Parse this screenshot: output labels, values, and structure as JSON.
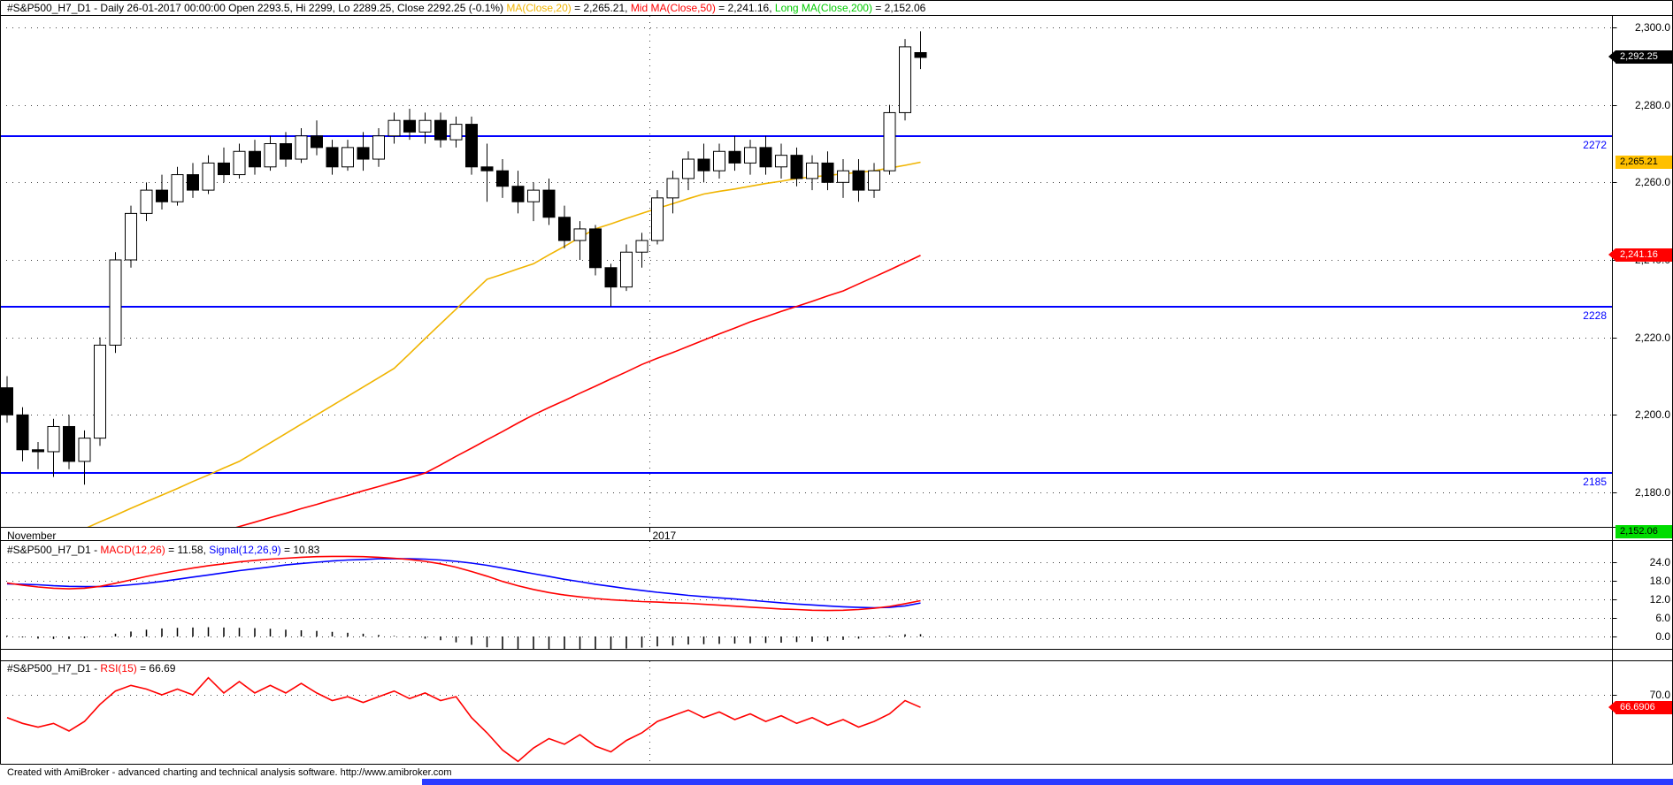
{
  "window": {
    "footer": "Created with AmiBroker - advanced charting and technical analysis software. http://www.amibroker.com"
  },
  "colors": {
    "ma20": "#f0b400",
    "ma50": "#ff0000",
    "ma200": "#00cc00",
    "macd": "#ff0000",
    "signal": "#0000ff",
    "rsi": "#ff0000",
    "support_line": "#0000ff",
    "grid_dot": "#404040",
    "histogram": "#000000",
    "scrollbar": "#2b3bff"
  },
  "chart_data": [
    {
      "type": "candlestick",
      "title_segments": [
        {
          "text": "#S&P500_H7_D1 - Daily 26-01-2017 00:00:00 Open 2293.5, Hi 2299, Lo 2289.25, Close 2292.25 (-0.1%) ",
          "color": "#000000"
        },
        {
          "text": "MA(Close,20)",
          "color": "#f0b400"
        },
        {
          "text": " = 2,265.21, ",
          "color": "#000000"
        },
        {
          "text": "Mid MA(Close,50)",
          "color": "#ff0000"
        },
        {
          "text": " = 2,241.16, ",
          "color": "#000000"
        },
        {
          "text": "Long MA(Close,200)",
          "color": "#00cc00"
        },
        {
          "text": " = 2,152.06",
          "color": "#000000"
        }
      ],
      "x_axis": {
        "month_label": "November",
        "year_label": "2017",
        "year_line_bar": 41.5
      },
      "y_ticks": [
        {
          "label": "2,300.0",
          "value": 2300
        },
        {
          "label": "2,280.0",
          "value": 2280
        },
        {
          "label": "2,260.0",
          "value": 2260
        },
        {
          "label": "2,240.0",
          "value": 2240
        },
        {
          "label": "2,220.0",
          "value": 2220
        },
        {
          "label": "2,200.0",
          "value": 2200
        },
        {
          "label": "2,180.0",
          "value": 2180
        }
      ],
      "y_range": [
        2171,
        2303
      ],
      "support_lines": [
        {
          "label": "2272",
          "value": 2272
        },
        {
          "label": "2228",
          "value": 2228
        },
        {
          "label": "2185",
          "value": 2185
        }
      ],
      "price_boxes": [
        {
          "text": "2,292.25",
          "value": 2292.25,
          "bg": "#000000",
          "fg": "#ffffff",
          "arrow": true,
          "clamp": false
        },
        {
          "text": "2,265.21",
          "value": 2265.21,
          "bg": "#ffc000",
          "fg": "#000000",
          "arrow": false,
          "clamp": false
        },
        {
          "text": "2,241.16",
          "value": 2241.16,
          "bg": "#ff0000",
          "fg": "#ffffff",
          "arrow": true,
          "clamp": false
        },
        {
          "text": "2,152.06",
          "value": 2152.06,
          "bg": "#00dd00",
          "fg": "#000000",
          "arrow": false,
          "clamp": true
        }
      ],
      "ohlc": [
        [
          2207,
          2210,
          2198,
          2200
        ],
        [
          2200,
          2202,
          2188,
          2191
        ],
        [
          2191,
          2193,
          2186,
          2190.5
        ],
        [
          2190.5,
          2199,
          2184,
          2197
        ],
        [
          2197,
          2200,
          2186,
          2188
        ],
        [
          2188,
          2196,
          2182,
          2194
        ],
        [
          2194,
          2220,
          2192,
          2218
        ],
        [
          2218,
          2242,
          2216,
          2240
        ],
        [
          2240,
          2254,
          2238,
          2252
        ],
        [
          2252,
          2260,
          2250,
          2258
        ],
        [
          2258,
          2262,
          2253,
          2255
        ],
        [
          2255,
          2264,
          2254,
          2262
        ],
        [
          2262,
          2265,
          2256,
          2258
        ],
        [
          2258,
          2267,
          2257,
          2265
        ],
        [
          2265,
          2269,
          2260,
          2262
        ],
        [
          2262,
          2270,
          2261,
          2268
        ],
        [
          2268,
          2271,
          2262,
          2264
        ],
        [
          2264,
          2272,
          2263,
          2270
        ],
        [
          2270,
          2273,
          2264,
          2266
        ],
        [
          2266,
          2274,
          2265,
          2272
        ],
        [
          2272,
          2276,
          2267,
          2269
        ],
        [
          2269,
          2271,
          2262,
          2264
        ],
        [
          2264,
          2271,
          2263,
          2269
        ],
        [
          2269,
          2273,
          2263,
          2266
        ],
        [
          2266,
          2274,
          2264,
          2272
        ],
        [
          2272,
          2278,
          2270,
          2276
        ],
        [
          2276,
          2279,
          2271,
          2273
        ],
        [
          2273,
          2278,
          2270,
          2276
        ],
        [
          2276,
          2278,
          2269,
          2271
        ],
        [
          2271,
          2277,
          2269,
          2275
        ],
        [
          2275,
          2277,
          2262,
          2264
        ],
        [
          2264,
          2270,
          2255,
          2263
        ],
        [
          2263,
          2266,
          2256,
          2259
        ],
        [
          2259,
          2263,
          2252,
          2255
        ],
        [
          2255,
          2260,
          2250,
          2258
        ],
        [
          2258,
          2261,
          2249,
          2251
        ],
        [
          2251,
          2254,
          2243,
          2245
        ],
        [
          2245,
          2250,
          2240,
          2248
        ],
        [
          2248,
          2249,
          2236,
          2238
        ],
        [
          2238,
          2239,
          2228,
          2233
        ],
        [
          2233,
          2244,
          2232,
          2242
        ],
        [
          2242,
          2247,
          2238,
          2245
        ],
        [
          2245,
          2258,
          2244,
          2256
        ],
        [
          2256,
          2263,
          2252,
          2261
        ],
        [
          2261,
          2268,
          2258,
          2266
        ],
        [
          2266,
          2270,
          2260,
          2263
        ],
        [
          2263,
          2270,
          2261,
          2268
        ],
        [
          2268,
          2272,
          2263,
          2265
        ],
        [
          2265,
          2271,
          2262,
          2269
        ],
        [
          2269,
          2272,
          2262,
          2264
        ],
        [
          2264,
          2270,
          2261,
          2267
        ],
        [
          2267,
          2269,
          2259,
          2261
        ],
        [
          2261,
          2267,
          2258,
          2265
        ],
        [
          2265,
          2268,
          2258,
          2260
        ],
        [
          2260,
          2266,
          2256,
          2263
        ],
        [
          2263,
          2266,
          2255,
          2258
        ],
        [
          2258,
          2265,
          2256,
          2263
        ],
        [
          2263,
          2280,
          2262,
          2278
        ],
        [
          2278,
          2297,
          2276,
          2295
        ],
        [
          2293.5,
          2299,
          2289.25,
          2292.25
        ]
      ],
      "ma20": [
        2162,
        2163.7,
        2165.5,
        2167.2,
        2169,
        2170.6,
        2172.4,
        2174.1,
        2175.9,
        2177.6,
        2179.3,
        2181,
        2182.8,
        2184.5,
        2186.3,
        2188,
        2190.4,
        2192.8,
        2195.2,
        2197.6,
        2200,
        2202.4,
        2204.8,
        2207.2,
        2209.6,
        2212,
        2215.8,
        2219.7,
        2223.5,
        2227.3,
        2231.2,
        2235,
        2236.3,
        2237.7,
        2239,
        2241.3,
        2243.5,
        2245.8,
        2248,
        2249.3,
        2250.7,
        2252,
        2253.3,
        2254.5,
        2255.8,
        2257,
        2257.7,
        2258.3,
        2259,
        2259.7,
        2260.3,
        2261,
        2261.4,
        2261.8,
        2262.2,
        2262.6,
        2263,
        2263.7,
        2264.4,
        2265.2
      ],
      "ma50": [
        null,
        null,
        null,
        null,
        null,
        null,
        null,
        null,
        null,
        null,
        null,
        null,
        null,
        null,
        2170,
        2171.2,
        2172.3,
        2173.5,
        2174.6,
        2175.8,
        2176.9,
        2178.1,
        2179.2,
        2180.4,
        2181.5,
        2182.7,
        2183.8,
        2185,
        2187.1,
        2189.3,
        2191.4,
        2193.6,
        2195.7,
        2197.9,
        2200,
        2201.9,
        2203.7,
        2205.6,
        2207.4,
        2209.3,
        2211.1,
        2213,
        2214.6,
        2216.1,
        2217.7,
        2219.3,
        2220.9,
        2222.4,
        2224,
        2225.3,
        2226.7,
        2228,
        2229.3,
        2230.7,
        2232,
        2233.8,
        2235.6,
        2237.4,
        2239.3,
        2241.16
      ]
    },
    {
      "type": "line+histogram",
      "name": "MACD",
      "title_segments": [
        {
          "text": "#S&P500_H7_D1 - ",
          "color": "#000000"
        },
        {
          "text": "MACD(12,26)",
          "color": "#ff0000"
        },
        {
          "text": " = 11.58, ",
          "color": "#000000"
        },
        {
          "text": "Signal(12,26,9)",
          "color": "#0000ff"
        },
        {
          "text": " = 10.83",
          "color": "#000000"
        }
      ],
      "y_ticks": [
        {
          "label": "24.0",
          "value": 24
        },
        {
          "label": "18.0",
          "value": 18
        },
        {
          "label": "12.0",
          "value": 12
        },
        {
          "label": "6.0",
          "value": 6
        },
        {
          "label": "0.0",
          "value": 0
        }
      ],
      "macd": [
        17.3,
        16.6,
        16.0,
        15.6,
        15.4,
        15.6,
        16.2,
        17.2,
        18.3,
        19.4,
        20.4,
        21.3,
        22.1,
        22.9,
        23.5,
        24.1,
        24.6,
        25.0,
        25.3,
        25.6,
        25.8,
        25.9,
        25.9,
        25.8,
        25.6,
        25.3,
        24.9,
        24.3,
        23.5,
        22.4,
        21.0,
        19.5,
        17.8,
        16.4,
        15.2,
        14.2,
        13.4,
        12.8,
        12.3,
        11.9,
        11.6,
        11.3,
        11.1,
        10.9,
        10.7,
        10.4,
        10.1,
        9.8,
        9.5,
        9.2,
        8.9,
        8.7,
        8.5,
        8.4,
        8.5,
        8.7,
        9.1,
        9.7,
        10.6,
        11.58
      ],
      "signal": [
        17.0,
        16.9,
        16.7,
        16.4,
        16.2,
        16.1,
        16.1,
        16.3,
        16.7,
        17.2,
        17.8,
        18.5,
        19.2,
        19.9,
        20.6,
        21.3,
        21.9,
        22.5,
        23.1,
        23.6,
        24.0,
        24.4,
        24.7,
        24.9,
        25.1,
        25.1,
        25.1,
        25.0,
        24.7,
        24.3,
        23.7,
        23.0,
        22.1,
        21.2,
        20.3,
        19.4,
        18.5,
        17.7,
        16.9,
        16.2,
        15.5,
        14.9,
        14.3,
        13.8,
        13.3,
        12.9,
        12.5,
        12.1,
        11.7,
        11.3,
        10.9,
        10.5,
        10.2,
        9.9,
        9.6,
        9.4,
        9.3,
        9.4,
        9.9,
        10.83
      ]
    },
    {
      "type": "line",
      "name": "RSI",
      "title_segments": [
        {
          "text": "#S&P500_H7_D1 - ",
          "color": "#000000"
        },
        {
          "text": "RSI(15)",
          "color": "#ff0000"
        },
        {
          "text": " = 66.69",
          "color": "#000000"
        }
      ],
      "y_ticks": [
        {
          "label": "70.0",
          "value": 70
        }
      ],
      "value_box": {
        "text": "66.6906",
        "value": 66.6906,
        "bg": "#ff0000",
        "fg": "#ffffff",
        "arrow": true
      },
      "rsi": [
        64,
        62.5,
        61.5,
        62.5,
        60.5,
        63,
        67.5,
        71,
        72.5,
        71.5,
        70,
        71.5,
        70,
        74.5,
        70.5,
        73.5,
        70.5,
        72.5,
        70.5,
        73,
        70.5,
        68.5,
        69.5,
        68,
        69.5,
        71,
        69,
        70.5,
        68.5,
        69.5,
        64,
        60,
        55.5,
        52.5,
        56,
        58.5,
        57,
        59.5,
        56.5,
        55,
        58,
        60,
        63,
        64.5,
        66,
        64,
        65.5,
        63.5,
        65,
        63,
        64.5,
        62.5,
        64,
        62,
        63.5,
        61.5,
        63,
        65,
        68.5,
        66.69
      ]
    }
  ]
}
